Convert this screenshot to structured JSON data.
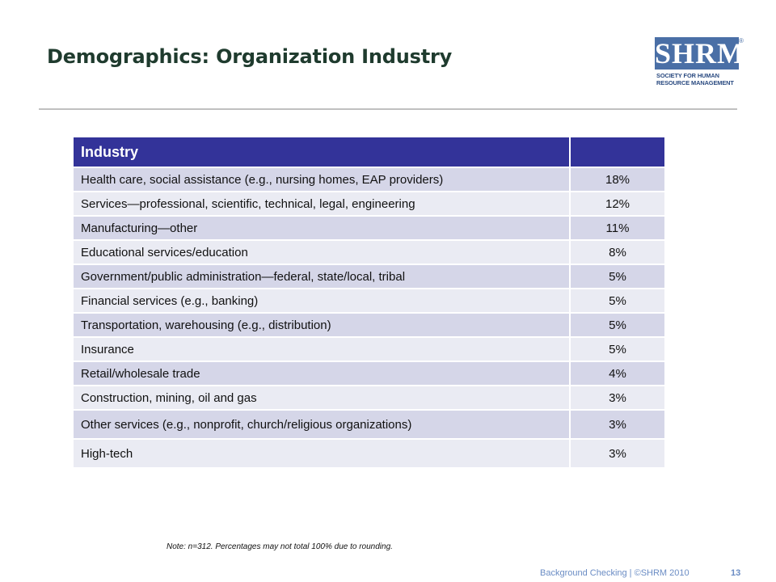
{
  "slide": {
    "title": "Demographics: Organization Industry",
    "logo": {
      "text": "SHRM",
      "registered": "®",
      "subtitle_line1": "SOCIETY FOR HUMAN",
      "subtitle_line2": "RESOURCE MANAGEMENT"
    },
    "note": "Note: n=312. Percentages may not total 100% due to rounding.",
    "footer": "Background Checking | ©SHRM 2010",
    "page_number": "13"
  },
  "table": {
    "header": {
      "label": "Industry",
      "value": ""
    },
    "rows": [
      {
        "label": "Health care, social assistance (e.g., nursing homes, EAP providers)",
        "value": "18%"
      },
      {
        "label": "Services—professional, scientific, technical, legal, engineering",
        "value": "12%"
      },
      {
        "label": "Manufacturing—other",
        "value": "11%"
      },
      {
        "label": "Educational services/education",
        "value": "8%"
      },
      {
        "label": "Government/public administration—federal, state/local, tribal",
        "value": "5%"
      },
      {
        "label": "Financial services (e.g., banking)",
        "value": "5%"
      },
      {
        "label": "Transportation, warehousing (e.g., distribution)",
        "value": "5%"
      },
      {
        "label": "Insurance",
        "value": "5%"
      },
      {
        "label": "Retail/wholesale trade",
        "value": "4%"
      },
      {
        "label": "Construction, mining, oil and gas",
        "value": "3%"
      },
      {
        "label": "Other services (e.g., nonprofit, church/religious organizations)",
        "value": "3%"
      },
      {
        "label": "High-tech",
        "value": "3%"
      }
    ]
  }
}
